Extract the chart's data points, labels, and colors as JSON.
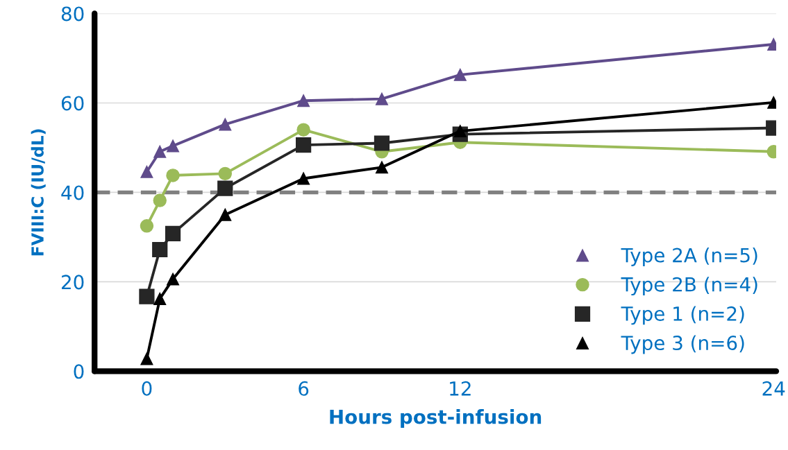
{
  "chart_data": {
    "type": "line",
    "xlabel": "Hours post-infusion",
    "ylabel": "FVIII:C (IU/dL)",
    "x": [
      0,
      0.5,
      1,
      3,
      6,
      9,
      12,
      24
    ],
    "xlim": [
      -2,
      24.1
    ],
    "xticks": [
      0,
      6,
      12,
      24
    ],
    "ylim": [
      0,
      80
    ],
    "yticks": [
      0,
      20,
      40,
      60,
      80
    ],
    "grid": "y",
    "legend": "bottom right",
    "series": [
      {
        "name": "Type 2A (n=5)",
        "color": "#5f4b8b",
        "marker": "triangle",
        "values": [
          44.6,
          49.1,
          50.4,
          55.2,
          60.5,
          60.9,
          66.3,
          73.1
        ]
      },
      {
        "name": "Type 2B (n=4)",
        "color": "#9bbb59",
        "marker": "circle",
        "values": [
          32.5,
          38.2,
          43.8,
          44.2,
          54.0,
          49.1,
          51.2,
          49.1
        ]
      },
      {
        "name": "Type 1 (n=2)",
        "color": "#262626",
        "marker": "square",
        "values": [
          16.7,
          27.2,
          30.8,
          40.9,
          50.6,
          51.0,
          53.0,
          54.4
        ]
      },
      {
        "name": "Type 3 (n=6)",
        "color": "#000000",
        "marker": "triangle",
        "values": [
          2.8,
          16.2,
          20.6,
          35.0,
          43.1,
          45.6,
          53.7,
          60.1
        ]
      }
    ],
    "ref_lines": [
      {
        "axis": "y",
        "value": 40,
        "color": "#808080",
        "line_style": "dashed"
      }
    ]
  }
}
